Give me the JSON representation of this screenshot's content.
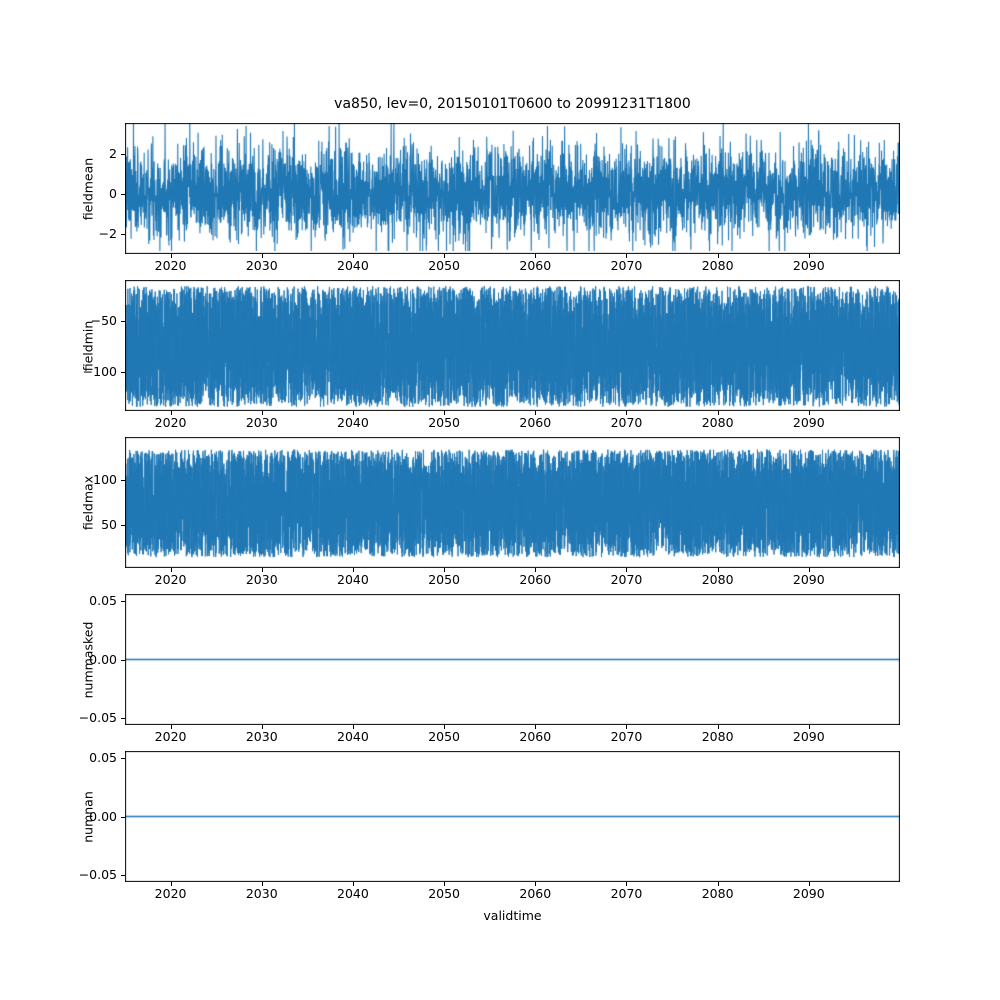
{
  "title": "va850, lev=0, 20150101T0600 to 20991231T1800",
  "xlabel": "validtime",
  "line_color": "#1f77b4",
  "frame_color": "#000000",
  "x_axis": {
    "min": 2015,
    "max": 2100,
    "tick_values": [
      2020,
      2030,
      2040,
      2050,
      2060,
      2070,
      2080,
      2090
    ],
    "tick_labels": [
      "2020",
      "2030",
      "2040",
      "2050",
      "2060",
      "2070",
      "2080",
      "2090"
    ]
  },
  "chart_data": [
    {
      "name": "fieldmean",
      "type": "line",
      "ylabel": "fieldmean",
      "ylim": [
        -3.0,
        3.55
      ],
      "ytick_values": [
        2,
        0,
        -2
      ],
      "ytick_labels": [
        "2",
        "0",
        "−2"
      ],
      "x_range": [
        2015,
        2100
      ],
      "line_width": 1.1,
      "signal": {
        "kind": "gaussian",
        "mean": 0.1,
        "sigma": 1.15,
        "clip_min": -2.85,
        "clip_max": 3.5,
        "points": 4200,
        "seed": 7
      },
      "description": "dense noisy series oscillating roughly between -2.8 and 3.5 around 0"
    },
    {
      "name": "fieldmin",
      "type": "line",
      "ylabel": "fieldmin",
      "ylim": [
        -138,
        -10
      ],
      "ytick_values": [
        -50,
        -100
      ],
      "ytick_labels": [
        "−50",
        "−100"
      ],
      "x_range": [
        2015,
        2100
      ],
      "line_width": 1.0,
      "signal": {
        "kind": "uniform",
        "low": -134,
        "high": -16,
        "points": 9000,
        "seed": 11
      },
      "description": "dense band filling approximately -16 down to -134 for the whole record"
    },
    {
      "name": "fieldmax",
      "type": "line",
      "ylabel": "fieldmax",
      "ylim": [
        2,
        148
      ],
      "ytick_values": [
        100,
        50
      ],
      "ytick_labels": [
        "100",
        "50"
      ],
      "x_range": [
        2015,
        2100
      ],
      "line_width": 1.0,
      "signal": {
        "kind": "uniform",
        "low": 14,
        "high": 134,
        "points": 9000,
        "seed": 13
      },
      "description": "dense band filling approximately 14 up to 134 for the whole record"
    },
    {
      "name": "nummasked",
      "type": "line",
      "ylabel": "nummasked",
      "ylim": [
        -0.0563,
        0.0563
      ],
      "ytick_values": [
        0.05,
        0.0,
        -0.05
      ],
      "ytick_labels": [
        "0.05",
        "0.00",
        "−0.05"
      ],
      "x_range": [
        2015,
        2100
      ],
      "line_width": 1.5,
      "signal": {
        "kind": "constant",
        "value": 0,
        "points": 2,
        "seed": 1
      },
      "description": "constant zero line"
    },
    {
      "name": "numnan",
      "type": "line",
      "ylabel": "numnan",
      "ylim": [
        -0.0563,
        0.0563
      ],
      "ytick_values": [
        0.05,
        0.0,
        -0.05
      ],
      "ytick_labels": [
        "0.05",
        "0.00",
        "−0.05"
      ],
      "x_range": [
        2015,
        2100
      ],
      "line_width": 1.5,
      "signal": {
        "kind": "constant",
        "value": 0,
        "points": 2,
        "seed": 1
      },
      "description": "constant zero line"
    }
  ]
}
